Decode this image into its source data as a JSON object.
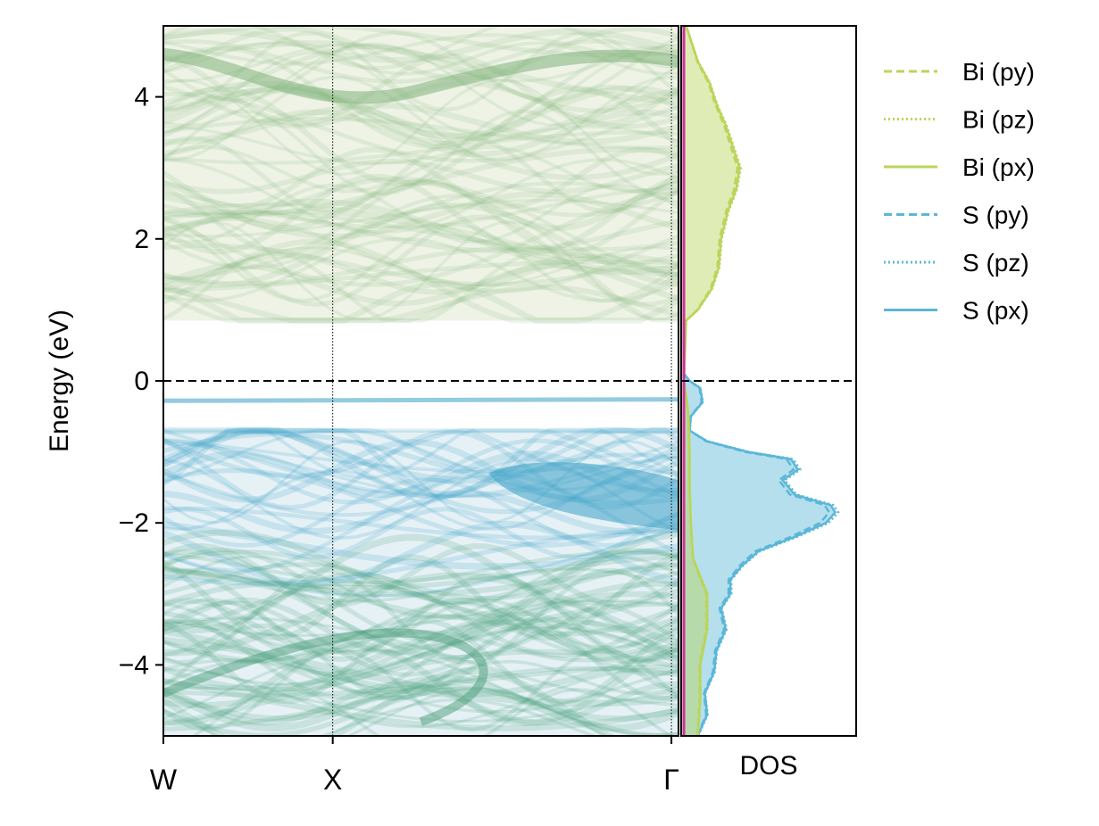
{
  "chart_data": {
    "type": "line",
    "title": "",
    "ylabel": "Energy (eV)",
    "ylim": [
      -5,
      5
    ],
    "yticks": [
      {
        "value": 4,
        "label": "4"
      },
      {
        "value": 2,
        "label": "2"
      },
      {
        "value": 0,
        "label": "0"
      },
      {
        "value": -2,
        "label": "−2"
      },
      {
        "value": -4,
        "label": "−4"
      }
    ],
    "kpoints": [
      {
        "label": "W",
        "pos": 0
      },
      {
        "label": "X",
        "pos": 0.25
      },
      {
        "label": "Γ",
        "pos": 0.75
      }
    ],
    "fermi_level": 0,
    "dos_label": "DOS",
    "grid": false,
    "legend_position": "outside-right",
    "band_character": {
      "valence_color": "#3aa0c6",
      "conduction_color": "#7fb27a",
      "deep_color": "#4a9e7a",
      "gap_edges": {
        "valence_top": -0.25,
        "conduction_bottom": 0.85
      }
    },
    "legend": [
      {
        "label": "Bi (py)",
        "color": "#bad55a",
        "dash": "dashed"
      },
      {
        "label": "Bi (pz)",
        "color": "#bad55a",
        "dash": "dotted"
      },
      {
        "label": "Bi (px)",
        "color": "#bad55a",
        "dash": "solid"
      },
      {
        "label": "S (py)",
        "color": "#5bb7d8",
        "dash": "dashed"
      },
      {
        "label": "S (pz)",
        "color": "#5bb7d8",
        "dash": "dotted"
      },
      {
        "label": "S (px)",
        "color": "#5bb7d8",
        "dash": "solid"
      }
    ],
    "dos_series": [
      {
        "name": "S (px)",
        "color": "#5bb7d8",
        "energy": [
          -5.0,
          -4.7,
          -4.4,
          -4.1,
          -3.8,
          -3.5,
          -3.2,
          -3.0,
          -2.8,
          -2.6,
          -2.4,
          -2.2,
          -2.0,
          -1.85,
          -1.75,
          -1.6,
          -1.4,
          -1.25,
          -1.1,
          -1.0,
          -0.85,
          -0.7,
          -0.5,
          -0.3,
          -0.1,
          0.0,
          0.1
        ],
        "value": [
          0.12,
          0.2,
          0.18,
          0.26,
          0.28,
          0.36,
          0.32,
          0.4,
          0.4,
          0.5,
          0.64,
          0.95,
          1.22,
          1.3,
          1.26,
          0.95,
          0.85,
          0.98,
          0.92,
          0.55,
          0.2,
          0.05,
          0.06,
          0.16,
          0.14,
          0.05,
          0.0
        ]
      },
      {
        "name": "Bi (px)",
        "color": "#bad55a",
        "energy": [
          -5.0,
          -4.5,
          -4.0,
          -3.5,
          -3.0,
          -2.5,
          -2.0,
          -1.5,
          -1.0,
          -0.5,
          -0.2,
          0.0,
          0.85,
          1.0,
          1.3,
          1.6,
          2.0,
          2.4,
          2.7,
          3.0,
          3.3,
          3.6,
          3.9,
          4.2,
          4.5,
          4.8,
          5.0
        ],
        "value": [
          0.12,
          0.14,
          0.14,
          0.2,
          0.2,
          0.08,
          0.06,
          0.05,
          0.05,
          0.04,
          0.02,
          0.0,
          0.02,
          0.12,
          0.24,
          0.3,
          0.32,
          0.38,
          0.45,
          0.48,
          0.42,
          0.36,
          0.28,
          0.22,
          0.12,
          0.06,
          0.02
        ]
      }
    ]
  }
}
